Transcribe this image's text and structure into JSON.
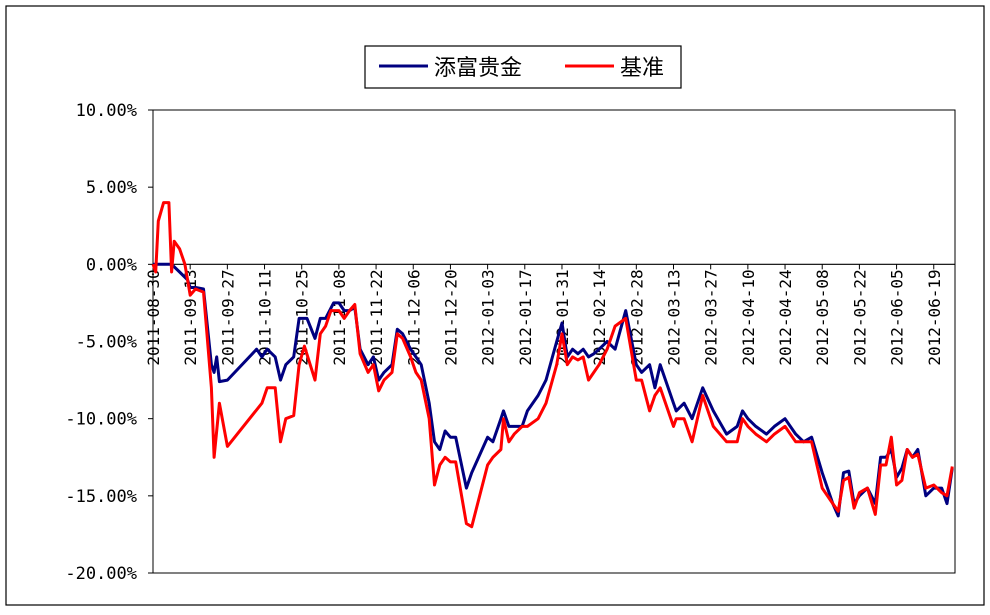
{
  "chart_data": {
    "type": "line",
    "title": "",
    "xlabel": "",
    "ylabel": "",
    "ylim": [
      -20,
      10
    ],
    "y_ticks": [
      "10.00%",
      "5.00%",
      "0.00%",
      "-5.00%",
      "-10.00%",
      "-15.00%",
      "-20.00%"
    ],
    "y_tick_values": [
      10,
      5,
      0,
      -5,
      -10,
      -15,
      -20
    ],
    "x_tick_labels": [
      "2011-08-30",
      "2011-09-13",
      "2011-09-27",
      "2011-10-11",
      "2011-10-25",
      "2011-11-08",
      "2011-11-22",
      "2011-12-06",
      "2011-12-20",
      "2012-01-03",
      "2012-01-17",
      "2012-01-31",
      "2012-02-14",
      "2012-02-28",
      "2012-03-13",
      "2012-03-27",
      "2012-04-10",
      "2012-04-24",
      "2012-05-08",
      "2012-05-22",
      "2012-06-05",
      "2012-06-19"
    ],
    "legend_position": "top-center",
    "grid": false,
    "series": [
      {
        "name": "添富贵金",
        "color": "#000080",
        "points": [
          [
            "2011-08-30",
            0.0
          ],
          [
            "2011-09-02",
            0.0
          ],
          [
            "2011-09-06",
            0.0
          ],
          [
            "2011-09-09",
            -0.5
          ],
          [
            "2011-09-12",
            -1.0
          ],
          [
            "2011-09-13",
            -1.5
          ],
          [
            "2011-09-15",
            -1.5
          ],
          [
            "2011-09-18",
            -1.6
          ],
          [
            "2011-09-21",
            -6.5
          ],
          [
            "2011-09-22",
            -7.0
          ],
          [
            "2011-09-23",
            -6.0
          ],
          [
            "2011-09-24",
            -7.6
          ],
          [
            "2011-09-27",
            -7.5
          ],
          [
            "2011-10-08",
            -5.5
          ],
          [
            "2011-10-10",
            -6.0
          ],
          [
            "2011-10-12",
            -5.5
          ],
          [
            "2011-10-15",
            -6.0
          ],
          [
            "2011-10-17",
            -7.5
          ],
          [
            "2011-10-19",
            -6.5
          ],
          [
            "2011-10-22",
            -6.0
          ],
          [
            "2011-10-24",
            -3.5
          ],
          [
            "2011-10-27",
            -3.5
          ],
          [
            "2011-10-30",
            -4.8
          ],
          [
            "2011-11-01",
            -3.5
          ],
          [
            "2011-11-03",
            -3.5
          ],
          [
            "2011-11-06",
            -2.5
          ],
          [
            "2011-11-08",
            -2.5
          ],
          [
            "2011-11-10",
            -3.0
          ],
          [
            "2011-11-12",
            -3.0
          ],
          [
            "2011-11-14",
            -2.8
          ],
          [
            "2011-11-16",
            -5.5
          ],
          [
            "2011-11-19",
            -6.5
          ],
          [
            "2011-11-21",
            -6.0
          ],
          [
            "2011-11-23",
            -7.5
          ],
          [
            "2011-11-25",
            -7.0
          ],
          [
            "2011-11-28",
            -6.5
          ],
          [
            "2011-11-30",
            -4.2
          ],
          [
            "2011-12-02",
            -4.5
          ],
          [
            "2011-12-05",
            -5.5
          ],
          [
            "2011-12-07",
            -6.0
          ],
          [
            "2011-12-09",
            -6.5
          ],
          [
            "2011-12-12",
            -9.0
          ],
          [
            "2011-12-14",
            -11.5
          ],
          [
            "2011-12-16",
            -12.0
          ],
          [
            "2011-12-18",
            -10.8
          ],
          [
            "2011-12-20",
            -11.2
          ],
          [
            "2011-12-22",
            -11.2
          ],
          [
            "2011-12-26",
            -14.5
          ],
          [
            "2011-12-28",
            -13.5
          ],
          [
            "2012-01-03",
            -11.2
          ],
          [
            "2012-01-05",
            -11.5
          ],
          [
            "2012-01-08",
            -10.0
          ],
          [
            "2012-01-09",
            -9.5
          ],
          [
            "2012-01-11",
            -10.5
          ],
          [
            "2012-01-13",
            -10.5
          ],
          [
            "2012-01-16",
            -10.5
          ],
          [
            "2012-01-18",
            -9.5
          ],
          [
            "2012-01-22",
            -8.5
          ],
          [
            "2012-01-25",
            -7.5
          ],
          [
            "2012-01-29",
            -5.0
          ],
          [
            "2012-01-31",
            -3.8
          ],
          [
            "2012-02-02",
            -6.0
          ],
          [
            "2012-02-04",
            -5.5
          ],
          [
            "2012-02-06",
            -5.8
          ],
          [
            "2012-02-08",
            -5.5
          ],
          [
            "2012-02-10",
            -6.0
          ],
          [
            "2012-02-12",
            -5.8
          ],
          [
            "2012-02-14",
            -5.5
          ],
          [
            "2012-02-17",
            -5.0
          ],
          [
            "2012-02-20",
            -5.5
          ],
          [
            "2012-02-24",
            -3.0
          ],
          [
            "2012-02-28",
            -6.5
          ],
          [
            "2012-03-01",
            -7.0
          ],
          [
            "2012-03-04",
            -6.5
          ],
          [
            "2012-03-06",
            -8.0
          ],
          [
            "2012-03-08",
            -6.5
          ],
          [
            "2012-03-13",
            -9.0
          ],
          [
            "2012-03-14",
            -9.5
          ],
          [
            "2012-03-17",
            -9.0
          ],
          [
            "2012-03-20",
            -10.0
          ],
          [
            "2012-03-24",
            -8.0
          ],
          [
            "2012-03-28",
            -9.5
          ],
          [
            "2012-04-02",
            -11.0
          ],
          [
            "2012-04-06",
            -10.5
          ],
          [
            "2012-04-08",
            -9.5
          ],
          [
            "2012-04-10",
            -10.0
          ],
          [
            "2012-04-13",
            -10.5
          ],
          [
            "2012-04-17",
            -11.0
          ],
          [
            "2012-04-20",
            -10.5
          ],
          [
            "2012-04-24",
            -10.0
          ],
          [
            "2012-04-28",
            -11.0
          ],
          [
            "2012-05-01",
            -11.5
          ],
          [
            "2012-05-04",
            -11.2
          ],
          [
            "2012-05-08",
            -13.5
          ],
          [
            "2012-05-12",
            -15.5
          ],
          [
            "2012-05-14",
            -16.3
          ],
          [
            "2012-05-16",
            -13.5
          ],
          [
            "2012-05-18",
            -13.4
          ],
          [
            "2012-05-20",
            -15.5
          ],
          [
            "2012-05-22",
            -15.0
          ],
          [
            "2012-05-25",
            -14.5
          ],
          [
            "2012-05-28",
            -15.5
          ],
          [
            "2012-05-30",
            -12.5
          ],
          [
            "2012-06-01",
            -12.5
          ],
          [
            "2012-06-03",
            -12.0
          ],
          [
            "2012-06-05",
            -13.8
          ],
          [
            "2012-06-07",
            -13.2
          ],
          [
            "2012-06-09",
            -12.0
          ],
          [
            "2012-06-11",
            -12.5
          ],
          [
            "2012-06-13",
            -12.0
          ],
          [
            "2012-06-16",
            -15.0
          ],
          [
            "2012-06-19",
            -14.5
          ],
          [
            "2012-06-22",
            -14.5
          ],
          [
            "2012-06-24",
            -15.5
          ],
          [
            "2012-06-26",
            -13.2
          ]
        ]
      },
      {
        "name": "基准",
        "color": "#ff0000",
        "points": [
          [
            "2011-08-30",
            0.0
          ],
          [
            "2011-08-31",
            -0.5
          ],
          [
            "2011-09-01",
            2.8
          ],
          [
            "2011-09-03",
            4.0
          ],
          [
            "2011-09-05",
            4.0
          ],
          [
            "2011-09-06",
            -0.5
          ],
          [
            "2011-09-07",
            1.5
          ],
          [
            "2011-09-09",
            1.0
          ],
          [
            "2011-09-11",
            0.0
          ],
          [
            "2011-09-13",
            -2.0
          ],
          [
            "2011-09-15",
            -1.6
          ],
          [
            "2011-09-18",
            -1.8
          ],
          [
            "2011-09-21",
            -8.0
          ],
          [
            "2011-09-22",
            -12.5
          ],
          [
            "2011-09-24",
            -9.0
          ],
          [
            "2011-09-27",
            -11.8
          ],
          [
            "2011-10-10",
            -9.0
          ],
          [
            "2011-10-12",
            -8.0
          ],
          [
            "2011-10-15",
            -8.0
          ],
          [
            "2011-10-17",
            -11.5
          ],
          [
            "2011-10-19",
            -10.0
          ],
          [
            "2011-10-22",
            -9.8
          ],
          [
            "2011-10-24",
            -6.5
          ],
          [
            "2011-10-26",
            -5.3
          ],
          [
            "2011-10-30",
            -7.5
          ],
          [
            "2011-11-01",
            -4.5
          ],
          [
            "2011-11-03",
            -4.0
          ],
          [
            "2011-11-05",
            -3.0
          ],
          [
            "2011-11-08",
            -3.0
          ],
          [
            "2011-11-10",
            -3.5
          ],
          [
            "2011-11-12",
            -3.0
          ],
          [
            "2011-11-14",
            -2.6
          ],
          [
            "2011-11-16",
            -5.8
          ],
          [
            "2011-11-19",
            -7.0
          ],
          [
            "2011-11-21",
            -6.5
          ],
          [
            "2011-11-23",
            -8.2
          ],
          [
            "2011-11-25",
            -7.5
          ],
          [
            "2011-11-28",
            -7.0
          ],
          [
            "2011-11-30",
            -4.5
          ],
          [
            "2011-12-02",
            -4.8
          ],
          [
            "2011-12-05",
            -6.0
          ],
          [
            "2011-12-07",
            -7.0
          ],
          [
            "2011-12-09",
            -7.5
          ],
          [
            "2011-12-12",
            -10.0
          ],
          [
            "2011-12-14",
            -14.3
          ],
          [
            "2011-12-16",
            -13.0
          ],
          [
            "2011-12-18",
            -12.5
          ],
          [
            "2011-12-20",
            -12.8
          ],
          [
            "2011-12-22",
            -12.8
          ],
          [
            "2011-12-26",
            -16.8
          ],
          [
            "2011-12-28",
            -17.0
          ],
          [
            "2012-01-03",
            -13.0
          ],
          [
            "2012-01-05",
            -12.5
          ],
          [
            "2012-01-08",
            -12.0
          ],
          [
            "2012-01-09",
            -10.0
          ],
          [
            "2012-01-11",
            -11.5
          ],
          [
            "2012-01-13",
            -11.0
          ],
          [
            "2012-01-16",
            -10.5
          ],
          [
            "2012-01-18",
            -10.5
          ],
          [
            "2012-01-22",
            -10.0
          ],
          [
            "2012-01-25",
            -9.0
          ],
          [
            "2012-01-29",
            -6.5
          ],
          [
            "2012-01-31",
            -4.5
          ],
          [
            "2012-02-02",
            -6.5
          ],
          [
            "2012-02-04",
            -6.0
          ],
          [
            "2012-02-06",
            -6.2
          ],
          [
            "2012-02-08",
            -6.0
          ],
          [
            "2012-02-10",
            -7.5
          ],
          [
            "2012-02-12",
            -7.0
          ],
          [
            "2012-02-14",
            -6.5
          ],
          [
            "2012-02-17",
            -5.5
          ],
          [
            "2012-02-20",
            -4.0
          ],
          [
            "2012-02-24",
            -3.5
          ],
          [
            "2012-02-28",
            -7.5
          ],
          [
            "2012-03-01",
            -7.5
          ],
          [
            "2012-03-04",
            -9.5
          ],
          [
            "2012-03-06",
            -8.5
          ],
          [
            "2012-03-08",
            -8.0
          ],
          [
            "2012-03-13",
            -10.5
          ],
          [
            "2012-03-14",
            -10.0
          ],
          [
            "2012-03-17",
            -10.0
          ],
          [
            "2012-03-20",
            -11.5
          ],
          [
            "2012-03-24",
            -8.5
          ],
          [
            "2012-03-28",
            -10.5
          ],
          [
            "2012-04-02",
            -11.5
          ],
          [
            "2012-04-06",
            -11.5
          ],
          [
            "2012-04-08",
            -10.0
          ],
          [
            "2012-04-10",
            -10.5
          ],
          [
            "2012-04-13",
            -11.0
          ],
          [
            "2012-04-17",
            -11.5
          ],
          [
            "2012-04-20",
            -11.0
          ],
          [
            "2012-04-24",
            -10.5
          ],
          [
            "2012-04-28",
            -11.5
          ],
          [
            "2012-05-01",
            -11.5
          ],
          [
            "2012-05-04",
            -11.5
          ],
          [
            "2012-05-08",
            -14.5
          ],
          [
            "2012-05-12",
            -15.5
          ],
          [
            "2012-05-14",
            -16.0
          ],
          [
            "2012-05-16",
            -14.0
          ],
          [
            "2012-05-18",
            -13.8
          ],
          [
            "2012-05-20",
            -15.8
          ],
          [
            "2012-05-22",
            -14.8
          ],
          [
            "2012-05-25",
            -14.5
          ],
          [
            "2012-05-28",
            -16.2
          ],
          [
            "2012-05-30",
            -13.0
          ],
          [
            "2012-06-01",
            -13.0
          ],
          [
            "2012-06-03",
            -11.2
          ],
          [
            "2012-06-05",
            -14.3
          ],
          [
            "2012-06-07",
            -14.0
          ],
          [
            "2012-06-09",
            -12.0
          ],
          [
            "2012-06-11",
            -12.5
          ],
          [
            "2012-06-13",
            -12.3
          ],
          [
            "2012-06-16",
            -14.5
          ],
          [
            "2012-06-19",
            -14.3
          ],
          [
            "2012-06-22",
            -14.8
          ],
          [
            "2012-06-24",
            -15.0
          ],
          [
            "2012-06-26",
            -13.1
          ]
        ]
      }
    ]
  }
}
